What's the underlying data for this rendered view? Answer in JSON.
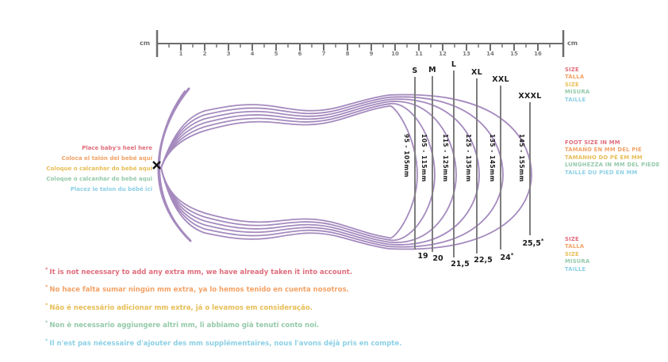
{
  "ruler": {
    "unit": "cm",
    "tick_numbers": [
      "1",
      "2",
      "3",
      "4",
      "5",
      "6",
      "7",
      "8",
      "9",
      "10",
      "11",
      "12",
      "13",
      "14",
      "15",
      "16"
    ]
  },
  "sizes": [
    {
      "label": "S",
      "foot_range": "95 - 105mm",
      "shoe_size": "19",
      "starred": false
    },
    {
      "label": "M",
      "foot_range": "105 - 115mm",
      "shoe_size": "20",
      "starred": false
    },
    {
      "label": "L",
      "foot_range": "115 - 125mm",
      "shoe_size": "21,5",
      "starred": false
    },
    {
      "label": "XL",
      "foot_range": "125 - 135mm",
      "shoe_size": "22,5",
      "starred": false
    },
    {
      "label": "XXL",
      "foot_range": "135 - 145mm",
      "shoe_size": "24",
      "starred": true
    },
    {
      "label": "XXXL",
      "foot_range": "145 - 155mm",
      "shoe_size": "25,5",
      "starred": true
    }
  ],
  "heel_instructions": [
    {
      "lang": "en",
      "text": "Place baby's heel here"
    },
    {
      "lang": "es",
      "text": "Coloca el talón del bebé aquí"
    },
    {
      "lang": "pt",
      "text": "Coloque o calcanhar do bebé aqui"
    },
    {
      "lang": "it",
      "text": "Coloque o calcanhar do bebé aqui"
    },
    {
      "lang": "fr",
      "text": "Placez le talon du bébé ici"
    }
  ],
  "size_legend_top": [
    "SIZE",
    "TALLA",
    "SIZE",
    "MISURA",
    "TAILLE"
  ],
  "foot_size_legend": [
    "FOOT SIZE IN MM",
    "TAMAÑO EN MM DEL PIE",
    "TAMANHO DO PÉ EM MM",
    "LUNGHEZZA IN MM DEL PIEDE",
    "TAILLE DU PIED EN MM"
  ],
  "size_legend_bottom": [
    "SIZE",
    "TALLA",
    "SIZE",
    "MISURA",
    "TAILLE"
  ],
  "notes": [
    "It is not necessary to add any extra mm, we have already taken it into account.",
    "No hace falta sumar ningún mm extra, ya lo hemos tenido en cuenta nosotros.",
    "Não é necessário adicionar mm extra, já o levamos em consideração.",
    "Non è necessario aggiungere altri mm, li abbiamo già tenuti conto noi.",
    "Il n'est pas nécessaire d'ajouter des mm supplémentaires, nous l'avons déjà pris en compte."
  ],
  "language_colors": [
    "#e06d7c",
    "#f2a266",
    "#e7bd55",
    "#94c9a9",
    "#8cd0e5"
  ],
  "colors": {
    "foot_outline": "#a58abe",
    "guide_line_gray": "#7e7e7e",
    "ruler_gray": "#6d6d6d",
    "text_dark": "#1c1c1c"
  }
}
